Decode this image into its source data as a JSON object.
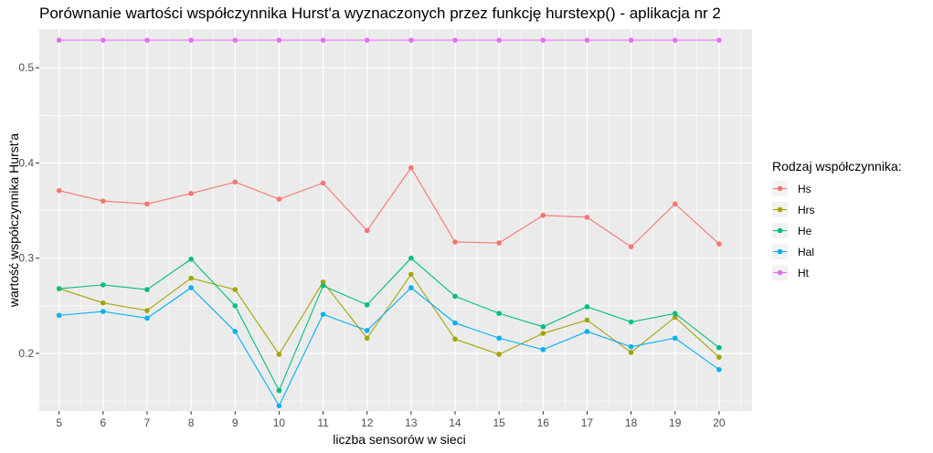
{
  "chart_data": {
    "type": "line",
    "title": "Porównanie wartości współczynnika Hurst'a wyznaczonych przez funkcję hurstexp() - aplikacja nr 2",
    "xlabel": "liczba sensorów w sieci",
    "ylabel": "wartość współczynnika Hurst'a",
    "x": [
      5,
      6,
      7,
      8,
      9,
      10,
      11,
      12,
      13,
      14,
      15,
      16,
      17,
      18,
      19,
      20
    ],
    "xlim": [
      4.55,
      20.75
    ],
    "ylim": [
      0.1395,
      0.5405
    ],
    "yticks": [
      0.2,
      0.3,
      0.4,
      0.5
    ],
    "ytick_labels": [
      "0.2",
      "0.3",
      "0.4",
      "0.5"
    ],
    "grid": true,
    "legend": {
      "title": "Rodzaj współczynnika:",
      "position": "right"
    },
    "series": [
      {
        "name": "Hs",
        "color": "#F8766D",
        "values": [
          0.371,
          0.36,
          0.357,
          0.368,
          0.38,
          0.362,
          0.379,
          0.329,
          0.395,
          0.317,
          0.316,
          0.345,
          0.343,
          0.312,
          0.357,
          0.315
        ]
      },
      {
        "name": "Hrs",
        "color": "#A3A500",
        "values": [
          0.268,
          0.253,
          0.245,
          0.279,
          0.267,
          0.199,
          0.275,
          0.216,
          0.283,
          0.215,
          0.199,
          0.221,
          0.235,
          0.201,
          0.238,
          0.196
        ]
      },
      {
        "name": "He",
        "color": "#00BF7D",
        "values": [
          0.268,
          0.272,
          0.267,
          0.299,
          0.25,
          0.161,
          0.271,
          0.251,
          0.3,
          0.26,
          0.242,
          0.228,
          0.249,
          0.233,
          0.242,
          0.206
        ]
      },
      {
        "name": "Hal",
        "color": "#00B0F6",
        "values": [
          0.24,
          0.244,
          0.237,
          0.269,
          0.223,
          0.145,
          0.241,
          0.224,
          0.269,
          0.232,
          0.216,
          0.204,
          0.223,
          0.207,
          0.216,
          0.183
        ]
      },
      {
        "name": "Ht",
        "color": "#E76BF3",
        "values": [
          0.529,
          0.529,
          0.529,
          0.529,
          0.529,
          0.529,
          0.529,
          0.529,
          0.529,
          0.529,
          0.529,
          0.529,
          0.529,
          0.529,
          0.529,
          0.529
        ]
      }
    ]
  }
}
